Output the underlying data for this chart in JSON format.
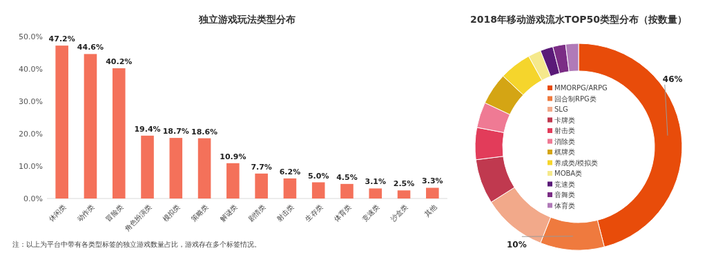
{
  "chart_data": [
    {
      "type": "bar",
      "title": "独立游戏玩法类型分布",
      "categories": [
        "休闲类",
        "动作类",
        "冒险类",
        "角色扮演类",
        "模拟类",
        "策略类",
        "解谜类",
        "剧情类",
        "射击类",
        "生存类",
        "体育类",
        "竞速类",
        "沙盒类",
        "其他"
      ],
      "values": [
        47.2,
        44.6,
        40.2,
        19.4,
        18.7,
        18.6,
        10.9,
        7.7,
        6.2,
        5.0,
        4.5,
        3.1,
        2.5,
        3.3
      ],
      "value_labels": [
        "47.2%",
        "44.6%",
        "40.2%",
        "19.4%",
        "18.7%",
        "18.6%",
        "10.9%",
        "7.7%",
        "6.2%",
        "5.0%",
        "4.5%",
        "3.1%",
        "2.5%",
        "3.3%"
      ],
      "color": "#f4715a",
      "ylim": [
        0,
        50
      ],
      "yticks": [
        {
          "value": 0,
          "label": "0.0%"
        },
        {
          "value": 10,
          "label": "10.0%"
        },
        {
          "value": 20,
          "label": "20.0%"
        },
        {
          "value": 30,
          "label": "30.0%"
        },
        {
          "value": 40,
          "label": "40.0%"
        },
        {
          "value": 50,
          "label": "50.0%"
        }
      ],
      "grid": false,
      "annotations": [
        "注：以上为平台中带有各类型标签的独立游戏数量占比，游戏存在多个标签情况。"
      ]
    },
    {
      "type": "donut",
      "title": "2018年移动游戏流水TOP50类型分布（按数量）",
      "categories": [
        "MMORPG/ARPG",
        "回合制RPG类",
        "SLG",
        "卡牌类",
        "射击类",
        "消除类",
        "棋牌类",
        "养成类/模拟类",
        "MOBA类",
        "竞速类",
        "音舞类",
        "体育类"
      ],
      "values": [
        46,
        10,
        10,
        7,
        5,
        4,
        5,
        5,
        2,
        2,
        2,
        2
      ],
      "value_labels": [
        "46%",
        "10%",
        null,
        null,
        null,
        null,
        null,
        null,
        null,
        null,
        null,
        null
      ],
      "colors": [
        "#e84c0a",
        "#ef7a3e",
        "#f2a98a",
        "#c0394f",
        "#e23c5a",
        "#ef7a94",
        "#d4a514",
        "#f5d52c",
        "#f5e98c",
        "#5a1a78",
        "#7b2d85",
        "#b07ab8"
      ],
      "legend": "center"
    }
  ]
}
